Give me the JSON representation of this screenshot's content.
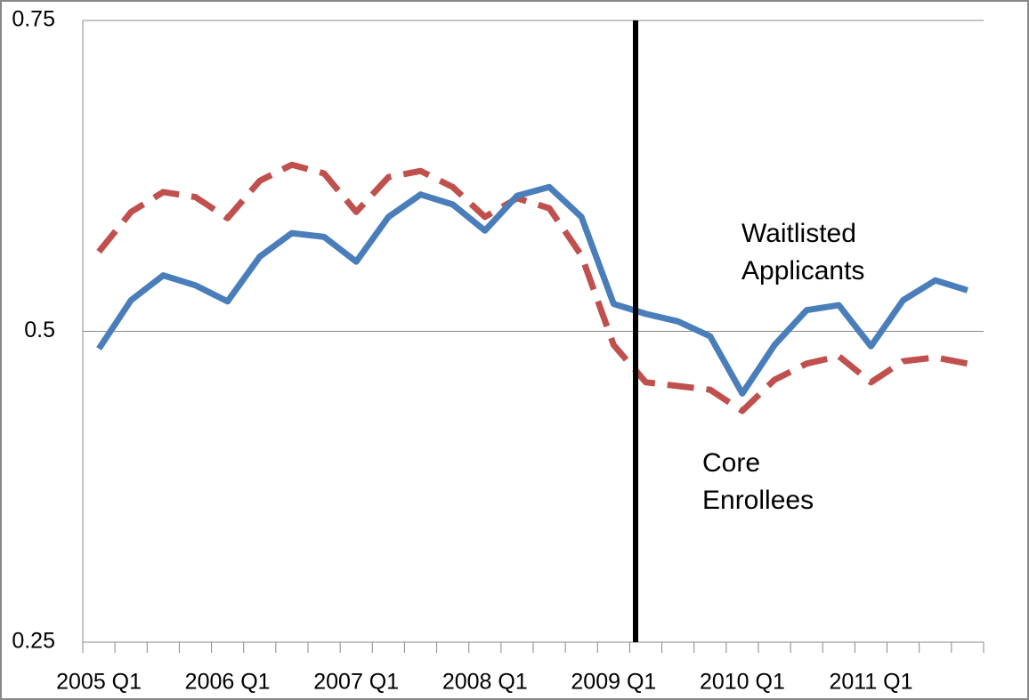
{
  "chart_data": {
    "type": "line",
    "categories": [
      "2005 Q1",
      null,
      null,
      null,
      "2006 Q1",
      null,
      null,
      null,
      "2007 Q1",
      null,
      null,
      null,
      "2008 Q1",
      null,
      null,
      null,
      "2009 Q1",
      null,
      null,
      null,
      "2010 Q1",
      null,
      null,
      null,
      "2011 Q1",
      null,
      null,
      null
    ],
    "series": [
      {
        "name": "Waitlisted Applicants",
        "color": "#4a7ebb",
        "dashed": false,
        "values": [
          0.486,
          0.525,
          0.545,
          0.537,
          0.524,
          0.56,
          0.579,
          0.576,
          0.556,
          0.592,
          0.61,
          0.602,
          0.581,
          0.609,
          0.616,
          0.592,
          0.522,
          0.514,
          0.508,
          0.496,
          0.45,
          0.489,
          0.517,
          0.521,
          0.488,
          0.525,
          0.541,
          0.533
        ]
      },
      {
        "name": "Core Enrollees",
        "color": "#c0504d",
        "dashed": true,
        "values": [
          0.564,
          0.596,
          0.612,
          0.608,
          0.591,
          0.621,
          0.634,
          0.627,
          0.596,
          0.624,
          0.629,
          0.616,
          0.592,
          0.607,
          0.599,
          0.561,
          0.489,
          0.459,
          0.456,
          0.453,
          0.436,
          0.461,
          0.474,
          0.48,
          0.459,
          0.476,
          0.479,
          0.474
        ]
      }
    ],
    "ylim": [
      0.25,
      0.75
    ],
    "yticks": [
      0.25,
      0.5,
      0.75
    ],
    "grid": true
  }
}
